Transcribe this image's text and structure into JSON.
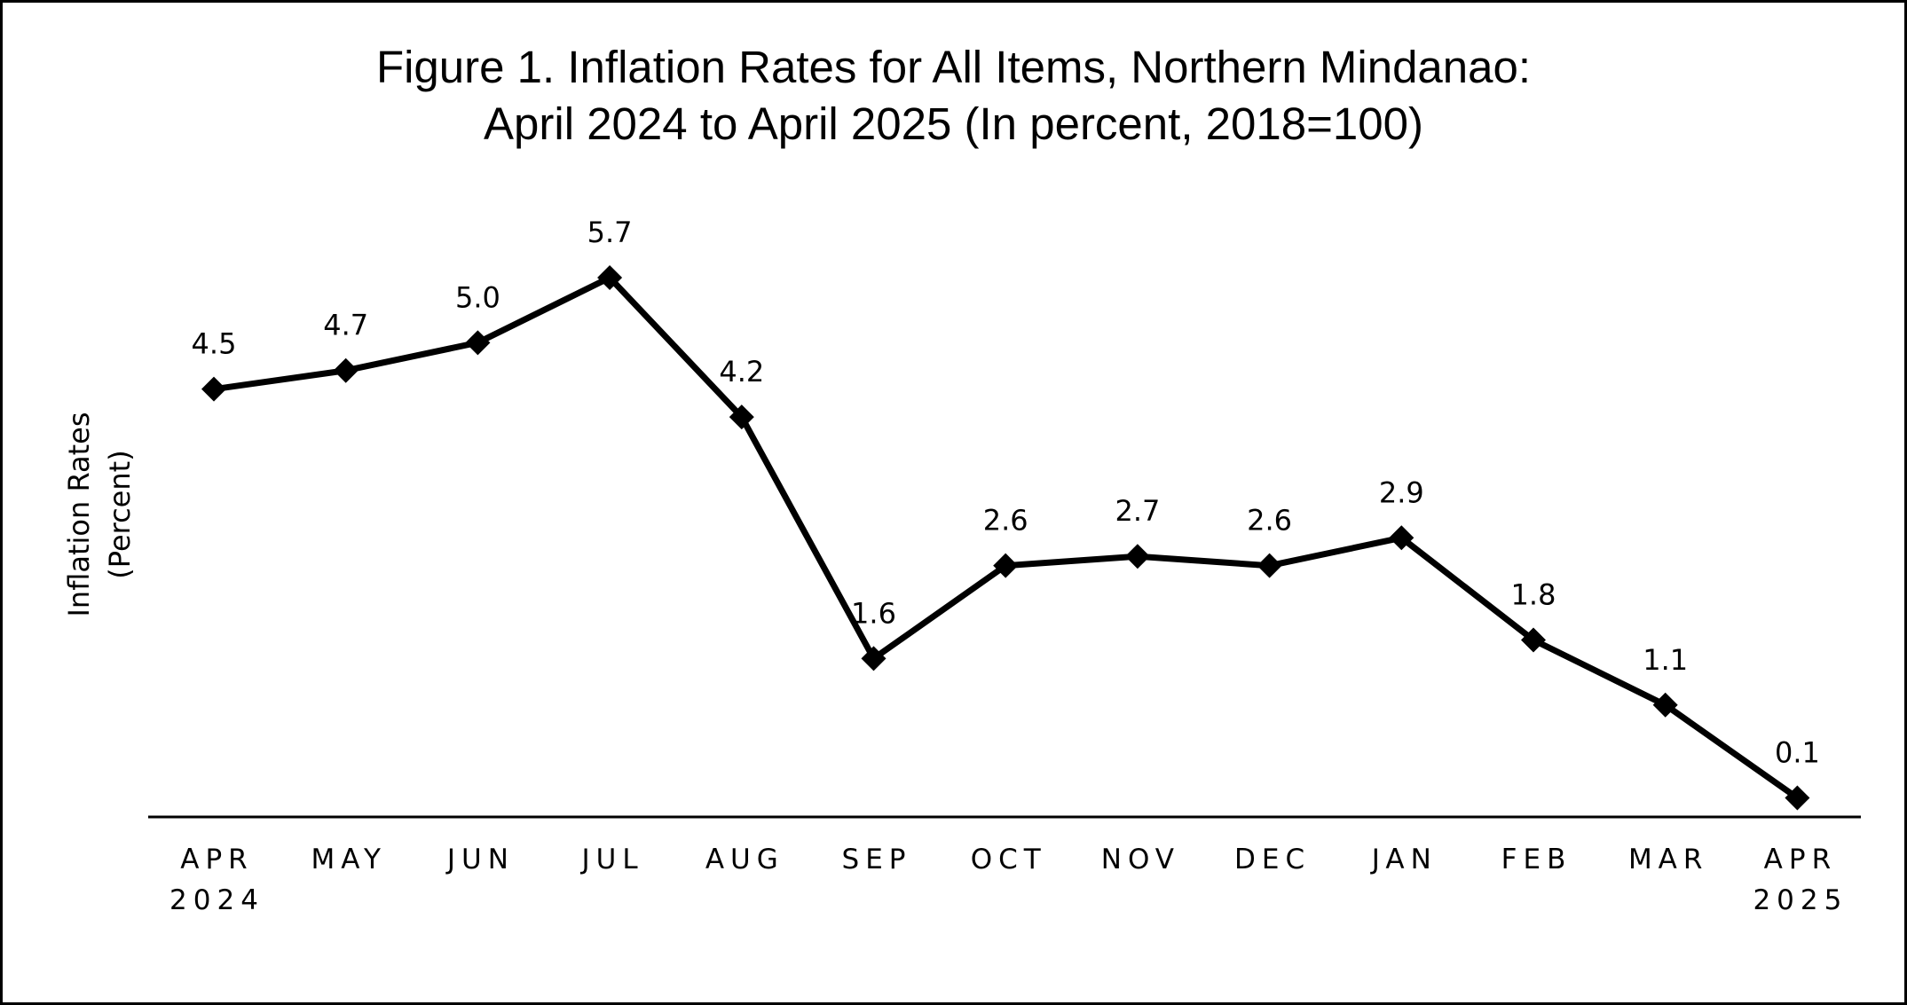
{
  "chart_data": {
    "type": "line",
    "title_line1": "Figure 1.  Inflation Rates for All Items, Northern Mindanao:",
    "title_line2": "April 2024 to April 2025 (In percent, 2018=100)",
    "ylabel_line1": "Inflation Rates",
    "ylabel_line2": "(Percent)",
    "xlabel": "",
    "categories": [
      "APR",
      "MAY",
      "JUN",
      "JUL",
      "AUG",
      "SEP",
      "OCT",
      "NOV",
      "DEC",
      "JAN",
      "FEB",
      "MAR",
      "APR"
    ],
    "category_sublabels": [
      "2024",
      "",
      "",
      "",
      "",
      "",
      "",
      "",
      "",
      "",
      "",
      "",
      "2025"
    ],
    "values": [
      4.5,
      4.7,
      5.0,
      5.7,
      4.2,
      1.6,
      2.6,
      2.7,
      2.6,
      2.9,
      1.8,
      1.1,
      0.1
    ],
    "value_labels": [
      "4.5",
      "4.7",
      "5.0",
      "5.7",
      "4.2",
      "1.6",
      "2.6",
      "2.7",
      "2.6",
      "2.9",
      "1.8",
      "1.1",
      "0.1"
    ],
    "ylim": [
      0,
      5.7
    ],
    "marker": "diamond",
    "grid": false,
    "legend": "none",
    "line_color": "#000000"
  }
}
